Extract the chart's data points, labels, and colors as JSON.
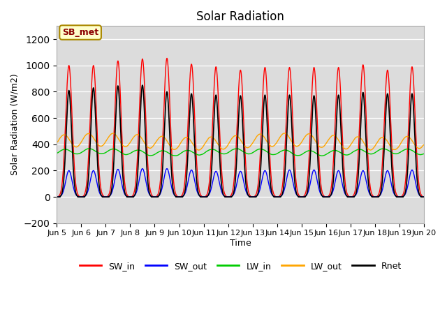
{
  "title": "Solar Radiation",
  "xlabel": "Time",
  "ylabel": "Solar Radiation (W/m2)",
  "ylim": [
    -200,
    1300
  ],
  "yticks": [
    -200,
    0,
    200,
    400,
    600,
    800,
    1000,
    1200
  ],
  "start_day": 5,
  "end_day": 20,
  "n_days": 15,
  "points_per_day": 480,
  "SW_in_peaks": [
    1000,
    1000,
    1035,
    1050,
    1055,
    1010,
    990,
    965,
    985,
    985,
    985,
    985,
    1005,
    965,
    990
  ],
  "SW_out_peaks": [
    200,
    200,
    210,
    215,
    215,
    205,
    195,
    195,
    200,
    205,
    205,
    200,
    200,
    200,
    205
  ],
  "LW_in_base": 340,
  "LW_in_amp": 20,
  "LW_out_base": 420,
  "LW_out_amp": 50,
  "Rnet_peaks": [
    810,
    830,
    845,
    850,
    800,
    785,
    775,
    770,
    775,
    775,
    770,
    775,
    795,
    785,
    785
  ],
  "colors": {
    "SW_in": "#FF0000",
    "SW_out": "#0000FF",
    "LW_in": "#00CC00",
    "LW_out": "#FFA500",
    "Rnet": "#000000"
  },
  "bg_color": "#DCDCDC",
  "annotation_label": "SB_met",
  "annotation_bg": "#FFFFCC",
  "annotation_border": "#AA8800"
}
